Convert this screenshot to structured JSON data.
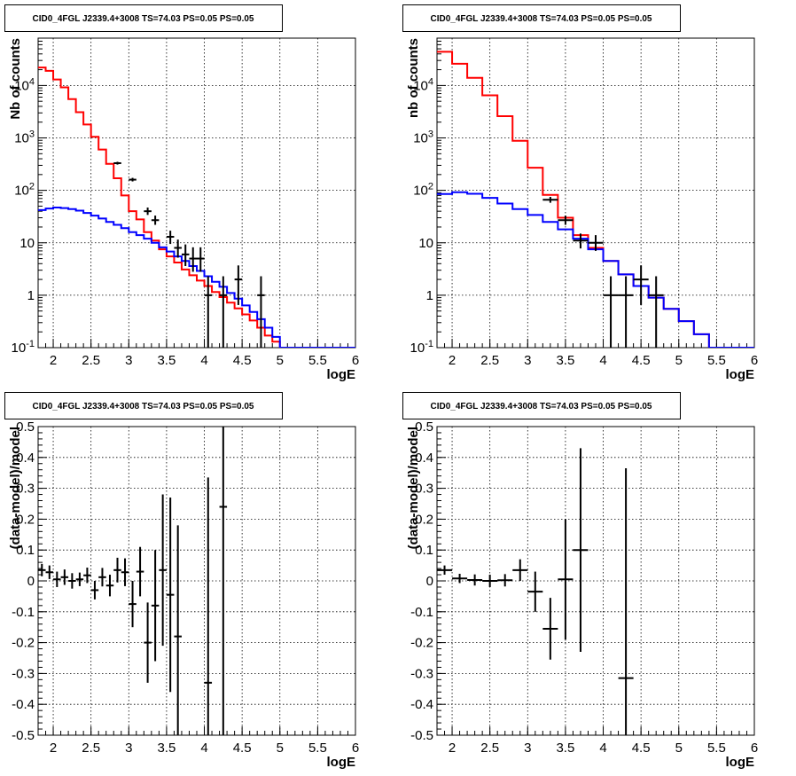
{
  "panels": [
    {
      "title": "CID0_4FGL J2339.4+3008 TS=74.03 PS=0.05 PS=0.05",
      "chart_data": {
        "type": "line",
        "title": "CID0_4FGL J2339.4+3008 TS=74.03 PS=0.05 PS=0.05",
        "xlabel": "logE",
        "ylabel": "Nb of counts",
        "xlim": [
          1.8,
          6.0
        ],
        "ylim": [
          0.1,
          80000
        ],
        "yscale": "log",
        "grid": true,
        "x_ticks": [
          "2",
          "2.5",
          "3",
          "3.5",
          "4",
          "4.5",
          "5",
          "5.5",
          "6"
        ],
        "y_ticks": [
          "10^-1",
          "1",
          "10",
          "10^2",
          "10^3",
          "10^4"
        ],
        "bin_edges": [
          1.8,
          1.9,
          2.0,
          2.1,
          2.2,
          2.3,
          2.4,
          2.5,
          2.6,
          2.7,
          2.8,
          2.9,
          3.0,
          3.1,
          3.2,
          3.3,
          3.4,
          3.5,
          3.6,
          3.7,
          3.8,
          3.9,
          4.0,
          4.1,
          4.2,
          4.3,
          4.4,
          4.5,
          4.6,
          4.7,
          4.8,
          4.9,
          5.0,
          5.1,
          5.2,
          5.3,
          5.4,
          5.5,
          5.6,
          5.7,
          5.8,
          5.9,
          6.0
        ],
        "series": [
          {
            "name": "",
            "color": "#ff0000",
            "values": [
              22000,
              19000,
              13000,
              9200,
              5500,
              3100,
              1800,
              1050,
              600,
              320,
              170,
              80,
              40,
              28,
              16,
              11,
              7.5,
              5.5,
              4.2,
              3.1,
              2.4,
              1.9,
              1.5,
              1.15,
              0.92,
              0.72,
              0.56,
              0.43,
              0.33,
              0.24,
              0.17,
              0.13,
              0.1,
              0.1,
              0.1,
              0.1,
              0.1,
              0.1,
              0.1,
              0.1,
              0.1,
              0.1
            ]
          },
          {
            "name": "",
            "color": "#0000ff",
            "values": [
              42,
              45,
              47,
              46,
              44,
              41,
              37,
              33,
              29,
              25,
              22,
              19,
              16,
              14,
              12,
              10,
              8.2,
              6.8,
              5.5,
              4.5,
              3.6,
              2.9,
              2.3,
              1.8,
              1.45,
              1.1,
              0.86,
              0.64,
              0.48,
              0.35,
              0.24,
              0.16,
              0.1,
              0.1,
              0.1,
              0.1,
              0.1,
              0.1,
              0.1,
              0.1,
              0.1,
              0.1
            ]
          }
        ],
        "points": [
          {
            "x": 2.85,
            "y": 330,
            "ylo": 310,
            "yhi": 350,
            "xerr": 0.05
          },
          {
            "x": 3.05,
            "y": 160,
            "ylo": 148,
            "yhi": 173,
            "xerr": 0.05
          },
          {
            "x": 3.25,
            "y": 40,
            "ylo": 34,
            "yhi": 47,
            "xerr": 0.05
          },
          {
            "x": 3.35,
            "y": 27,
            "ylo": 22,
            "yhi": 33,
            "xerr": 0.05
          },
          {
            "x": 3.55,
            "y": 13,
            "ylo": 9.5,
            "yhi": 17,
            "xerr": 0.05
          },
          {
            "x": 3.65,
            "y": 8,
            "ylo": 5.2,
            "yhi": 11.5,
            "xerr": 0.05
          },
          {
            "x": 3.75,
            "y": 6,
            "ylo": 3.6,
            "yhi": 9.3,
            "xerr": 0.05
          },
          {
            "x": 3.85,
            "y": 5,
            "ylo": 2.8,
            "yhi": 8.2,
            "xerr": 0.05
          },
          {
            "x": 3.95,
            "y": 5,
            "ylo": 2.8,
            "yhi": 8.2,
            "xerr": 0.05
          },
          {
            "x": 4.05,
            "y": 1,
            "ylo": 0.1,
            "yhi": 2.3,
            "xerr": 0.05
          },
          {
            "x": 4.25,
            "y": 1,
            "ylo": 0.1,
            "yhi": 2.3,
            "xerr": 0.05
          },
          {
            "x": 4.45,
            "y": 2,
            "ylo": 0.65,
            "yhi": 3.7,
            "xerr": 0.05
          },
          {
            "x": 4.75,
            "y": 1,
            "ylo": 0.1,
            "yhi": 2.3,
            "xerr": 0.05
          }
        ]
      }
    },
    {
      "title": "CID0_4FGL J2339.4+3008 TS=74.03 PS=0.05 PS=0.05",
      "chart_data": {
        "type": "line",
        "title": "CID0_4FGL J2339.4+3008 TS=74.03 PS=0.05 PS=0.05",
        "xlabel": "logE",
        "ylabel": "nb of counts",
        "xlim": [
          1.8,
          6.0
        ],
        "ylim": [
          0.1,
          80000
        ],
        "yscale": "log",
        "grid": true,
        "x_ticks": [
          "2",
          "2.5",
          "3",
          "3.5",
          "4",
          "4.5",
          "5",
          "5.5",
          "6"
        ],
        "y_ticks": [
          "10^-1",
          "1",
          "10",
          "10^2",
          "10^3",
          "10^4"
        ],
        "bin_edges": [
          1.8,
          2.0,
          2.2,
          2.4,
          2.6,
          2.8,
          3.0,
          3.2,
          3.4,
          3.6,
          3.8,
          4.0,
          4.2,
          4.4,
          4.6,
          4.8,
          5.0,
          5.2,
          5.4,
          5.6,
          5.8,
          6.0
        ],
        "series": [
          {
            "name": "",
            "color": "#ff0000",
            "values": [
              44000,
              26000,
              14000,
              6500,
              2600,
              880,
              270,
              82,
              30,
              14,
              8,
              4.5,
              2.5,
              1.5,
              0.9,
              0.55,
              0.32,
              0.18,
              0.1,
              0.1,
              0.1
            ]
          },
          {
            "name": "",
            "color": "#0000ff",
            "values": [
              85,
              92,
              86,
              72,
              56,
              44,
              34,
              25,
              18,
              12,
              7.5,
              4.5,
              2.5,
              1.5,
              0.9,
              0.55,
              0.32,
              0.18,
              0.1,
              0.1,
              0.1
            ]
          }
        ],
        "points": [
          {
            "x": 3.3,
            "y": 66,
            "ylo": 58,
            "yhi": 75,
            "xerr": 0.1
          },
          {
            "x": 3.5,
            "y": 27,
            "ylo": 22,
            "yhi": 33,
            "xerr": 0.1
          },
          {
            "x": 3.7,
            "y": 11,
            "ylo": 7.8,
            "yhi": 15,
            "xerr": 0.1
          },
          {
            "x": 3.9,
            "y": 10,
            "ylo": 7,
            "yhi": 14,
            "xerr": 0.1
          },
          {
            "x": 4.1,
            "y": 1,
            "ylo": 0.1,
            "yhi": 2.3,
            "xerr": 0.1
          },
          {
            "x": 4.3,
            "y": 1,
            "ylo": 0.1,
            "yhi": 2.3,
            "xerr": 0.1
          },
          {
            "x": 4.5,
            "y": 2,
            "ylo": 0.65,
            "yhi": 3.7,
            "xerr": 0.1
          },
          {
            "x": 4.7,
            "y": 1,
            "ylo": 0.1,
            "yhi": 2.3,
            "xerr": 0.1
          }
        ]
      }
    },
    {
      "title": "CID0_4FGL J2339.4+3008 TS=74.03 PS=0.05 PS=0.05",
      "chart_data": {
        "type": "scatter",
        "title": "CID0_4FGL J2339.4+3008 TS=74.03 PS=0.05 PS=0.05",
        "xlabel": "logE",
        "ylabel": "(data-model)/model",
        "xlim": [
          1.8,
          6.0
        ],
        "ylim": [
          -0.5,
          0.5
        ],
        "grid": true,
        "x_ticks": [
          "2",
          "2.5",
          "3",
          "3.5",
          "4",
          "4.5",
          "5",
          "5.5",
          "6"
        ],
        "y_ticks": [
          "-0.5",
          "-0.4",
          "-0.3",
          "-0.2",
          "-0.1",
          "0",
          "0.1",
          "0.2",
          "0.3",
          "0.4",
          "0.5"
        ],
        "points": [
          {
            "x": 1.85,
            "y": 0.035,
            "yerr": 0.02,
            "xerr": 0.05
          },
          {
            "x": 1.95,
            "y": 0.028,
            "yerr": 0.022,
            "xerr": 0.05
          },
          {
            "x": 2.05,
            "y": 0.005,
            "yerr": 0.025,
            "xerr": 0.05
          },
          {
            "x": 2.15,
            "y": 0.012,
            "yerr": 0.025,
            "xerr": 0.05
          },
          {
            "x": 2.25,
            "y": 0.0,
            "yerr": 0.025,
            "xerr": 0.05
          },
          {
            "x": 2.35,
            "y": 0.005,
            "yerr": 0.022,
            "xerr": 0.05
          },
          {
            "x": 2.45,
            "y": 0.018,
            "yerr": 0.025,
            "xerr": 0.05
          },
          {
            "x": 2.55,
            "y": -0.03,
            "yerr": 0.03,
            "xerr": 0.05
          },
          {
            "x": 2.65,
            "y": 0.012,
            "yerr": 0.03,
            "xerr": 0.05
          },
          {
            "x": 2.75,
            "y": -0.015,
            "yerr": 0.035,
            "xerr": 0.05
          },
          {
            "x": 2.85,
            "y": 0.035,
            "yerr": 0.04,
            "xerr": 0.05
          },
          {
            "x": 2.95,
            "y": 0.028,
            "yerr": 0.045,
            "xerr": 0.05
          },
          {
            "x": 3.05,
            "y": -0.075,
            "yerr": 0.075,
            "xerr": 0.05
          },
          {
            "x": 3.15,
            "y": 0.03,
            "yerr": 0.08,
            "xerr": 0.05
          },
          {
            "x": 3.25,
            "y": -0.2,
            "yerr": 0.13,
            "xerr": 0.05
          },
          {
            "x": 3.35,
            "y": -0.08,
            "yerr": 0.18,
            "xerr": 0.05
          },
          {
            "x": 3.45,
            "y": 0.035,
            "yerr": 0.245,
            "xerr": 0.05
          },
          {
            "x": 3.55,
            "y": -0.045,
            "yerr": 0.315,
            "xerr": 0.05
          },
          {
            "x": 3.65,
            "y": -0.18,
            "yerr": 0.36,
            "xerr": 0.05
          },
          {
            "x": 4.05,
            "y": -0.33,
            "yerr": 0.665,
            "xerr": 0.05
          },
          {
            "x": 4.25,
            "y": 0.24,
            "yerr": 1.0,
            "xerr": 0.05
          }
        ]
      }
    },
    {
      "title": "CID0_4FGL J2339.4+3008 TS=74.03 PS=0.05 PS=0.05",
      "chart_data": {
        "type": "scatter",
        "title": "CID0_4FGL J2339.4+3008 TS=74.03 PS=0.05 PS=0.05",
        "xlabel": "logE",
        "ylabel": "(data-model)/model",
        "xlim": [
          1.8,
          6.0
        ],
        "ylim": [
          -0.5,
          0.5
        ],
        "grid": true,
        "x_ticks": [
          "2",
          "2.5",
          "3",
          "3.5",
          "4",
          "4.5",
          "5",
          "5.5",
          "6"
        ],
        "y_ticks": [
          "-0.5",
          "-0.4",
          "-0.3",
          "-0.2",
          "-0.1",
          "0",
          "0.1",
          "0.2",
          "0.3",
          "0.4",
          "0.5"
        ],
        "points": [
          {
            "x": 1.9,
            "y": 0.035,
            "yerr": 0.015,
            "xerr": 0.1
          },
          {
            "x": 2.1,
            "y": 0.008,
            "yerr": 0.015,
            "xerr": 0.1
          },
          {
            "x": 2.3,
            "y": 0.003,
            "yerr": 0.018,
            "xerr": 0.1
          },
          {
            "x": 2.5,
            "y": 0.0,
            "yerr": 0.02,
            "xerr": 0.1
          },
          {
            "x": 2.7,
            "y": 0.002,
            "yerr": 0.02,
            "xerr": 0.1
          },
          {
            "x": 2.9,
            "y": 0.035,
            "yerr": 0.035,
            "xerr": 0.1
          },
          {
            "x": 3.1,
            "y": -0.035,
            "yerr": 0.065,
            "xerr": 0.1
          },
          {
            "x": 3.3,
            "y": -0.155,
            "yerr": 0.1,
            "xerr": 0.1
          },
          {
            "x": 3.5,
            "y": 0.005,
            "yerr": 0.195,
            "xerr": 0.1
          },
          {
            "x": 3.7,
            "y": 0.1,
            "yerr": 0.33,
            "xerr": 0.1
          },
          {
            "x": 4.3,
            "y": -0.315,
            "yerr": 0.68,
            "xerr": 0.1
          }
        ]
      }
    }
  ]
}
